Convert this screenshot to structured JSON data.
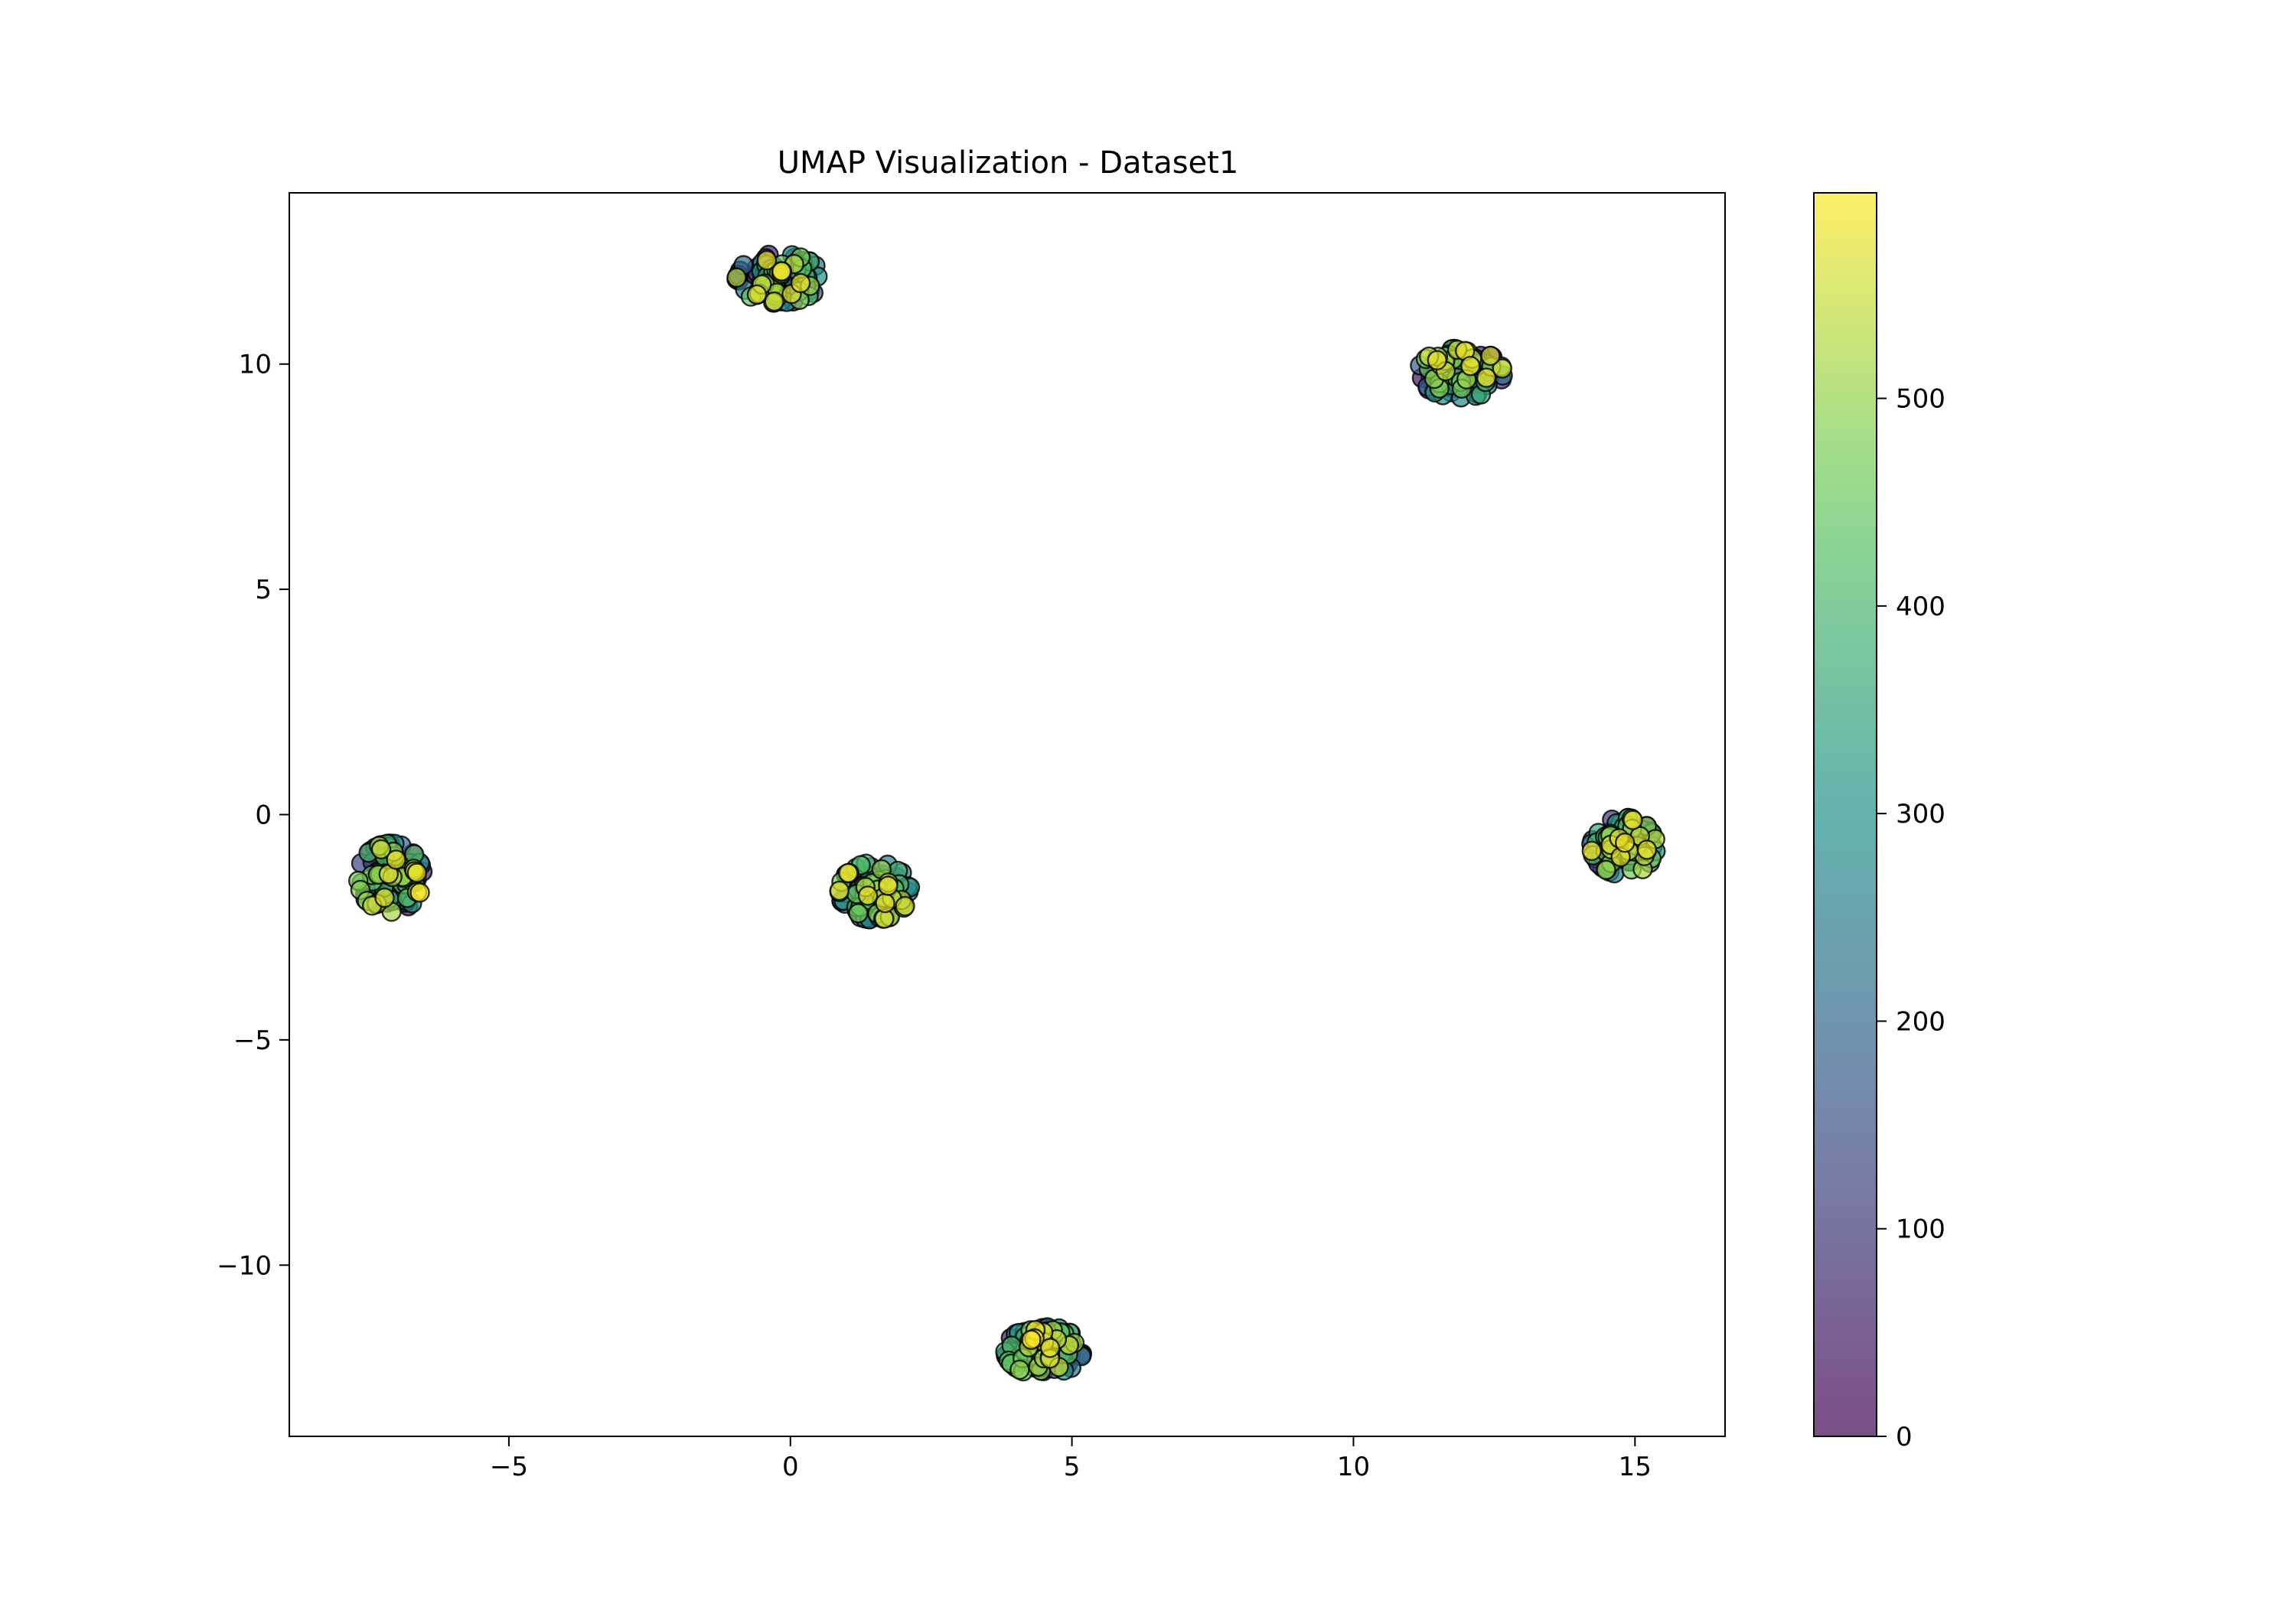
{
  "chart_data": {
    "type": "scatter",
    "title": "UMAP Visualization - Dataset1",
    "xlabel": "",
    "ylabel": "",
    "xlim": [
      -8.9,
      16.6
    ],
    "ylim": [
      -13.8,
      13.8
    ],
    "xticks": [
      -5,
      0,
      5,
      10,
      15
    ],
    "xtick_labels": [
      "−5",
      "0",
      "5",
      "10",
      "15"
    ],
    "yticks": [
      -10,
      -5,
      0,
      5,
      10
    ],
    "ytick_labels": [
      "−10",
      "−5",
      "0",
      "5",
      "10"
    ],
    "grid": false,
    "legend": false,
    "point_count": 600,
    "point_alpha": 0.7,
    "point_edge_color": "#000000",
    "colormap": "viridis",
    "colorbar": {
      "range": [
        0,
        599
      ],
      "ticks": [
        0,
        100,
        200,
        300,
        400,
        500
      ],
      "tick_labels": [
        "0",
        "100",
        "200",
        "300",
        "400",
        "500"
      ]
    },
    "clusters": [
      {
        "center": [
          -0.2,
          11.9
        ],
        "spread": [
          0.42,
          0.3
        ]
      },
      {
        "center": [
          11.9,
          9.8
        ],
        "spread": [
          0.42,
          0.3
        ]
      },
      {
        "center": [
          -7.1,
          -1.4
        ],
        "spread": [
          0.32,
          0.42
        ]
      },
      {
        "center": [
          1.5,
          -1.7
        ],
        "spread": [
          0.35,
          0.35
        ]
      },
      {
        "center": [
          14.8,
          -0.7
        ],
        "spread": [
          0.32,
          0.35
        ]
      },
      {
        "center": [
          4.5,
          -11.9
        ],
        "spread": [
          0.38,
          0.3
        ]
      }
    ]
  }
}
